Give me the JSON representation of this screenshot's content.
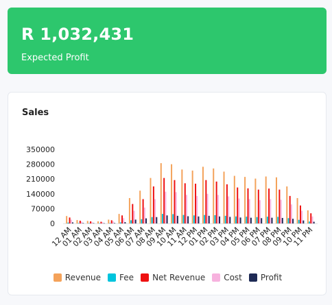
{
  "kpi": {
    "value": "R 1,032,431",
    "label": "Expected Profit",
    "color": "#2dc76d"
  },
  "sales_card": {
    "title": "Sales"
  },
  "chart_data": {
    "type": "bar",
    "title": "Sales",
    "xlabel": "",
    "ylabel": "",
    "ylim": [
      0,
      350000
    ],
    "y_ticks": [
      0,
      70000,
      140000,
      210000,
      280000,
      350000
    ],
    "grid": false,
    "legend_position": "bottom",
    "categories": [
      "12 AM",
      "01 AM",
      "02 AM",
      "03 AM",
      "04 AM",
      "05 AM",
      "06 AM",
      "07 AM",
      "08 AM",
      "09 AM",
      "10 AM",
      "11 AM",
      "12 PM",
      "01 PM",
      "02 PM",
      "03 PM",
      "04 PM",
      "05 PM",
      "06 PM",
      "07 PM",
      "08 PM",
      "09 PM",
      "10 PM",
      "11 PM"
    ],
    "series": [
      {
        "name": "Revenue",
        "color": "#f4a25a",
        "values": [
          35000,
          16000,
          12000,
          10000,
          18000,
          45000,
          120000,
          155000,
          215000,
          285000,
          280000,
          255000,
          250000,
          268000,
          260000,
          245000,
          225000,
          220000,
          212000,
          222000,
          218000,
          175000,
          120000,
          62000
        ]
      },
      {
        "name": "Fee",
        "color": "#00c4dd",
        "values": [
          4000,
          2000,
          1500,
          1200,
          2000,
          5000,
          15000,
          20000,
          30000,
          45000,
          44000,
          40000,
          38000,
          40000,
          39000,
          36000,
          33000,
          32000,
          30000,
          32000,
          31000,
          25000,
          17000,
          9000
        ]
      },
      {
        "name": "Net Revenue",
        "color": "#ee1111",
        "values": [
          28000,
          13000,
          10000,
          8000,
          15000,
          38000,
          92000,
          115000,
          175000,
          215000,
          205000,
          190000,
          188000,
          205000,
          198000,
          185000,
          170000,
          166000,
          160000,
          165000,
          160000,
          130000,
          85000,
          48000
        ]
      },
      {
        "name": "Cost",
        "color": "#f7b2de",
        "values": [
          18000,
          8000,
          6000,
          5000,
          10000,
          25000,
          60000,
          75000,
          115000,
          150000,
          148000,
          135000,
          130000,
          140000,
          135000,
          128000,
          118000,
          115000,
          110000,
          115000,
          112000,
          90000,
          60000,
          33000
        ]
      },
      {
        "name": "Profit",
        "color": "#1e2a55",
        "values": [
          5000,
          2000,
          1500,
          1200,
          2000,
          6000,
          18000,
          24000,
          30000,
          38000,
          36000,
          34000,
          33000,
          36000,
          33000,
          31000,
          28000,
          27000,
          25000,
          27000,
          26000,
          22000,
          14000,
          8000
        ]
      }
    ]
  }
}
